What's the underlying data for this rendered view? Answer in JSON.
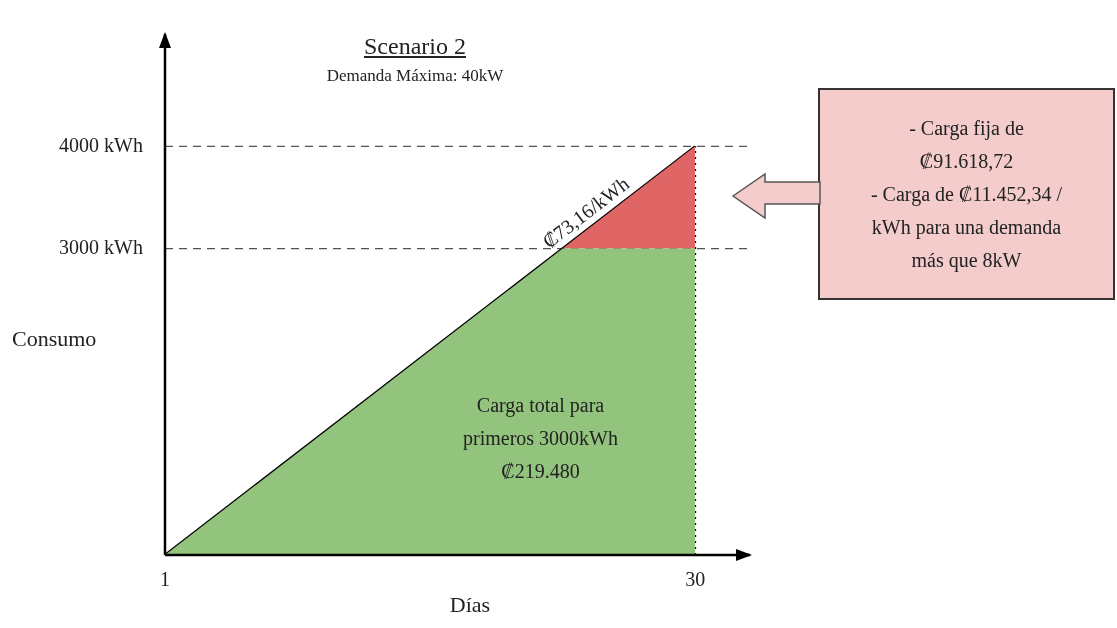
{
  "chart_data": {
    "type": "area",
    "title": "Scenario 2",
    "subtitle": "Demanda Máxima: 40kW",
    "xlabel": "Días",
    "ylabel": "Consumo",
    "xlim": [
      1,
      33
    ],
    "xticks": [
      1,
      30
    ],
    "ylim": [
      0,
      5100
    ],
    "yticks": [
      {
        "value": 3000,
        "label": "3000 kWh"
      },
      {
        "value": 4000,
        "label": "4000 kWh"
      }
    ],
    "grid": false,
    "legend": false,
    "series": [
      {
        "color": "#93c47d",
        "x": [
          1,
          22.75,
          30
        ],
        "values": [
          0,
          3000,
          3000
        ]
      },
      {
        "color": "#e06666",
        "x": [
          22.75,
          30
        ],
        "values": [
          3000,
          4000
        ]
      },
      {
        "type": "line",
        "color": "#000000",
        "x": [
          1,
          30
        ],
        "values": [
          0,
          4000
        ]
      }
    ],
    "ref_lines": [
      {
        "axis": "y",
        "value": 3000,
        "line_style": "dashed",
        "color": "#555555"
      },
      {
        "axis": "y",
        "value": 4000,
        "line_style": "dashed",
        "color": "#555555"
      },
      {
        "axis": "x",
        "value": 30,
        "line_style": "dotted",
        "color": "#000000"
      }
    ],
    "annotations": [
      {
        "text": "₡73,16/kWh",
        "x": 24.5,
        "y": 3241
      },
      "Carga total para\nprimeros 3000kWh\n₡219.480",
      "- Carga fija de\n₡91.618,72\n- Carga de ₡11.452,34 /\nkWh para una demanda\nmás que 8kW"
    ]
  }
}
